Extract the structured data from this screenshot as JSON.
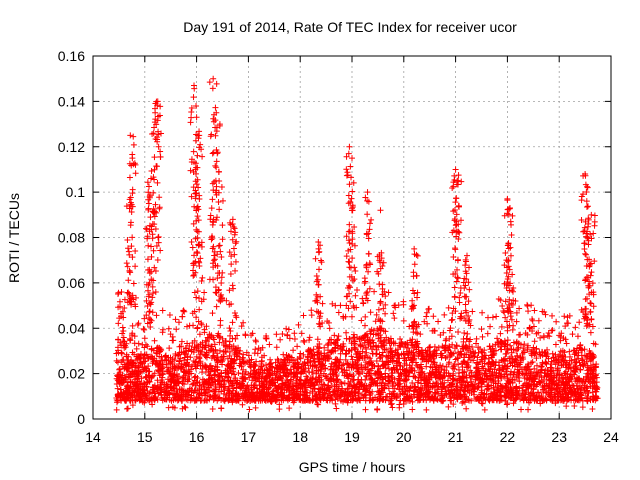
{
  "chart_data": {
    "type": "scatter",
    "title": "Day 191 of 2014, Rate Of TEC Index for receiver ucor",
    "xlabel": "GPS time / hours",
    "ylabel": "ROTI / TECUs",
    "xlim": [
      14,
      24
    ],
    "ylim": [
      0,
      0.16
    ],
    "xticks": [
      14,
      15,
      16,
      17,
      18,
      19,
      20,
      21,
      22,
      23,
      24
    ],
    "yticks": [
      0,
      0.02,
      0.04,
      0.06,
      0.08,
      0.1,
      0.12,
      0.14,
      0.16
    ],
    "xtick_labels": [
      "14",
      "15",
      "16",
      "17",
      "18",
      "19",
      "20",
      "21",
      "22",
      "23",
      "24"
    ],
    "ytick_labels": [
      "0",
      "0.02",
      "0.04",
      "0.06",
      "0.08",
      "0.1",
      "0.12",
      "0.14",
      "0.16"
    ],
    "grid": true,
    "marker": "+",
    "color": "#ff0000",
    "x_range_data": [
      14.45,
      23.75
    ],
    "peaks": [
      {
        "x": 14.55,
        "y": 0.056
      },
      {
        "x": 14.72,
        "y": 0.125
      },
      {
        "x": 14.76,
        "y": 0.115
      },
      {
        "x": 15.08,
        "y": 0.095
      },
      {
        "x": 15.12,
        "y": 0.106
      },
      {
        "x": 15.2,
        "y": 0.135
      },
      {
        "x": 15.25,
        "y": 0.14
      },
      {
        "x": 15.95,
        "y": 0.147
      },
      {
        "x": 16.0,
        "y": 0.133
      },
      {
        "x": 16.05,
        "y": 0.125
      },
      {
        "x": 16.32,
        "y": 0.15
      },
      {
        "x": 16.38,
        "y": 0.135
      },
      {
        "x": 16.45,
        "y": 0.13
      },
      {
        "x": 16.7,
        "y": 0.088
      },
      {
        "x": 18.35,
        "y": 0.078
      },
      {
        "x": 18.95,
        "y": 0.12
      },
      {
        "x": 19.0,
        "y": 0.115
      },
      {
        "x": 19.3,
        "y": 0.1
      },
      {
        "x": 19.55,
        "y": 0.092
      },
      {
        "x": 20.2,
        "y": 0.075
      },
      {
        "x": 21.0,
        "y": 0.11
      },
      {
        "x": 21.05,
        "y": 0.105
      },
      {
        "x": 21.22,
        "y": 0.072
      },
      {
        "x": 22.0,
        "y": 0.097
      },
      {
        "x": 22.05,
        "y": 0.093
      },
      {
        "x": 23.5,
        "y": 0.108
      },
      {
        "x": 23.55,
        "y": 0.102
      },
      {
        "x": 23.62,
        "y": 0.09
      }
    ],
    "envelope": [
      {
        "x": 14.5,
        "y": 0.025
      },
      {
        "x": 14.8,
        "y": 0.032
      },
      {
        "x": 15.2,
        "y": 0.04
      },
      {
        "x": 15.6,
        "y": 0.035
      },
      {
        "x": 16.0,
        "y": 0.045
      },
      {
        "x": 16.4,
        "y": 0.05
      },
      {
        "x": 16.8,
        "y": 0.038
      },
      {
        "x": 17.2,
        "y": 0.025
      },
      {
        "x": 17.6,
        "y": 0.03
      },
      {
        "x": 18.0,
        "y": 0.035
      },
      {
        "x": 18.5,
        "y": 0.042
      },
      {
        "x": 19.0,
        "y": 0.048
      },
      {
        "x": 19.5,
        "y": 0.05
      },
      {
        "x": 20.0,
        "y": 0.045
      },
      {
        "x": 20.5,
        "y": 0.04
      },
      {
        "x": 21.0,
        "y": 0.042
      },
      {
        "x": 21.5,
        "y": 0.04
      },
      {
        "x": 22.0,
        "y": 0.045
      },
      {
        "x": 22.5,
        "y": 0.04
      },
      {
        "x": 23.0,
        "y": 0.035
      },
      {
        "x": 23.4,
        "y": 0.04
      },
      {
        "x": 23.75,
        "y": 0.032
      }
    ]
  }
}
